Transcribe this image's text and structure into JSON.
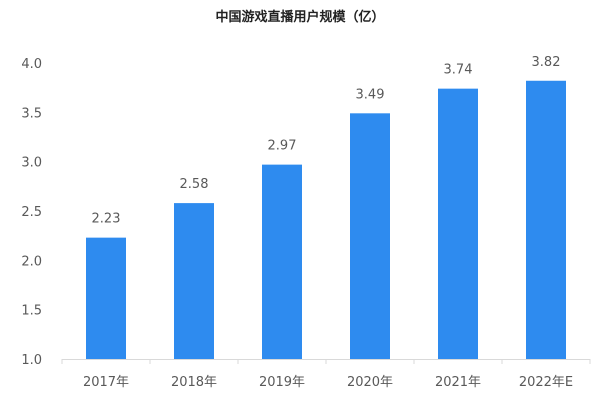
{
  "chart_data": {
    "type": "bar",
    "title": "中国游戏直播用户规模（亿）",
    "categories": [
      "2017年",
      "2018年",
      "2019年",
      "2020年",
      "2021年",
      "2022年E"
    ],
    "values": [
      2.23,
      2.58,
      2.97,
      3.49,
      3.74,
      3.82
    ],
    "data_labels": [
      "2.23",
      "2.58",
      "2.97",
      "3.49",
      "3.74",
      "3.82"
    ],
    "y_ticks": [
      "1.0",
      "1.5",
      "2.0",
      "2.5",
      "3.0",
      "3.5",
      "4.0"
    ],
    "ylim": [
      1.0,
      4.0
    ],
    "xlabel": "",
    "ylabel": "",
    "grid": false,
    "legend": "none",
    "bar_color": "#2E8BEF",
    "axis_color": "#D9D9D9"
  }
}
